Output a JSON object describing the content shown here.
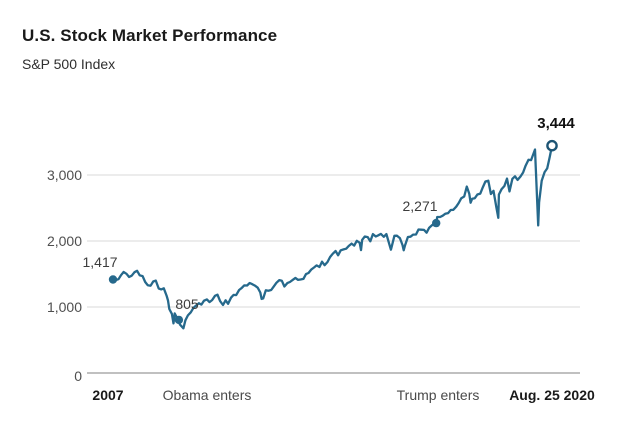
{
  "header": {
    "title": "U.S. Stock Market Performance",
    "subtitle": "S&P 500 Index"
  },
  "colors": {
    "line": "#26698c",
    "marker_fill": "#26698c",
    "open_marker_stroke": "#1d5474",
    "open_marker_fill": "#ffffff",
    "gridline": "#d9d9d9",
    "axis": "#ababab"
  },
  "chart_data": {
    "type": "line",
    "title": "U.S. Stock Market Performance",
    "subtitle": "S&P 500 Index",
    "x_range": [
      2007.0,
      2020.65
    ],
    "ylim": [
      0,
      3600
    ],
    "grid": "horizontal",
    "legend": "none",
    "yticks": [
      {
        "value": 0,
        "label": "0"
      },
      {
        "value": 1000,
        "label": "1,000"
      },
      {
        "value": 2000,
        "label": "2,000"
      },
      {
        "value": 3000,
        "label": "3,000"
      }
    ],
    "xticks": [
      {
        "t": 2007.0,
        "label": "2007",
        "bold": true
      },
      {
        "t": 2009.05,
        "label": "Obama enters",
        "bold": false
      },
      {
        "t": 2017.05,
        "label": "Trump enters",
        "bold": false
      },
      {
        "t": 2020.65,
        "label": "Aug. 25 2020",
        "bold": true
      }
    ],
    "markers": [
      {
        "t": 2007.0,
        "value": 1417,
        "label": "1,417",
        "style": "filled"
      },
      {
        "t": 2009.05,
        "value": 805,
        "label": "805",
        "style": "filled"
      },
      {
        "t": 2017.05,
        "value": 2271,
        "label": "2,271",
        "style": "filled"
      },
      {
        "t": 2020.65,
        "value": 3444,
        "label": "3,444",
        "style": "open"
      }
    ],
    "series": {
      "name": "S&P 500 Index",
      "points": [
        [
          2007.0,
          1417
        ],
        [
          2007.08,
          1407
        ],
        [
          2007.17,
          1421
        ],
        [
          2007.25,
          1482
        ],
        [
          2007.33,
          1531
        ],
        [
          2007.42,
          1503
        ],
        [
          2007.5,
          1455
        ],
        [
          2007.58,
          1474
        ],
        [
          2007.67,
          1527
        ],
        [
          2007.75,
          1549
        ],
        [
          2007.83,
          1481
        ],
        [
          2007.92,
          1468
        ],
        [
          2008.0,
          1379
        ],
        [
          2008.08,
          1331
        ],
        [
          2008.17,
          1323
        ],
        [
          2008.25,
          1386
        ],
        [
          2008.33,
          1400
        ],
        [
          2008.42,
          1280
        ],
        [
          2008.5,
          1267
        ],
        [
          2008.58,
          1283
        ],
        [
          2008.67,
          1166
        ],
        [
          2008.71,
          1099
        ],
        [
          2008.75,
          969
        ],
        [
          2008.83,
          896
        ],
        [
          2008.88,
          752
        ],
        [
          2008.92,
          903
        ],
        [
          2009.0,
          826
        ],
        [
          2009.05,
          805
        ],
        [
          2009.08,
          735
        ],
        [
          2009.19,
          677
        ],
        [
          2009.25,
          798
        ],
        [
          2009.33,
          873
        ],
        [
          2009.42,
          919
        ],
        [
          2009.5,
          987
        ],
        [
          2009.58,
          1021
        ],
        [
          2009.67,
          1057
        ],
        [
          2009.75,
          1036
        ],
        [
          2009.83,
          1096
        ],
        [
          2009.92,
          1115
        ],
        [
          2010.0,
          1074
        ],
        [
          2010.08,
          1104
        ],
        [
          2010.17,
          1169
        ],
        [
          2010.25,
          1187
        ],
        [
          2010.33,
          1089
        ],
        [
          2010.42,
          1031
        ],
        [
          2010.5,
          1102
        ],
        [
          2010.58,
          1049
        ],
        [
          2010.67,
          1141
        ],
        [
          2010.75,
          1183
        ],
        [
          2010.83,
          1181
        ],
        [
          2010.92,
          1258
        ],
        [
          2011.0,
          1286
        ],
        [
          2011.08,
          1327
        ],
        [
          2011.17,
          1326
        ],
        [
          2011.25,
          1364
        ],
        [
          2011.33,
          1345
        ],
        [
          2011.42,
          1321
        ],
        [
          2011.5,
          1292
        ],
        [
          2011.58,
          1219
        ],
        [
          2011.62,
          1123
        ],
        [
          2011.67,
          1131
        ],
        [
          2011.75,
          1253
        ],
        [
          2011.83,
          1247
        ],
        [
          2011.92,
          1258
        ],
        [
          2012.0,
          1312
        ],
        [
          2012.08,
          1366
        ],
        [
          2012.17,
          1408
        ],
        [
          2012.25,
          1398
        ],
        [
          2012.33,
          1310
        ],
        [
          2012.42,
          1362
        ],
        [
          2012.5,
          1379
        ],
        [
          2012.58,
          1407
        ],
        [
          2012.67,
          1441
        ],
        [
          2012.75,
          1412
        ],
        [
          2012.83,
          1416
        ],
        [
          2012.92,
          1426
        ],
        [
          2013.0,
          1498
        ],
        [
          2013.08,
          1515
        ],
        [
          2013.17,
          1569
        ],
        [
          2013.25,
          1598
        ],
        [
          2013.33,
          1631
        ],
        [
          2013.42,
          1606
        ],
        [
          2013.5,
          1686
        ],
        [
          2013.58,
          1633
        ],
        [
          2013.67,
          1682
        ],
        [
          2013.75,
          1757
        ],
        [
          2013.83,
          1806
        ],
        [
          2013.92,
          1848
        ],
        [
          2014.0,
          1783
        ],
        [
          2014.08,
          1859
        ],
        [
          2014.17,
          1872
        ],
        [
          2014.25,
          1884
        ],
        [
          2014.33,
          1924
        ],
        [
          2014.42,
          1960
        ],
        [
          2014.5,
          1931
        ],
        [
          2014.58,
          2003
        ],
        [
          2014.67,
          1972
        ],
        [
          2014.71,
          1862
        ],
        [
          2014.75,
          2018
        ],
        [
          2014.83,
          2068
        ],
        [
          2014.92,
          2059
        ],
        [
          2015.0,
          1995
        ],
        [
          2015.08,
          2105
        ],
        [
          2015.17,
          2068
        ],
        [
          2015.25,
          2086
        ],
        [
          2015.33,
          2107
        ],
        [
          2015.42,
          2063
        ],
        [
          2015.5,
          2104
        ],
        [
          2015.58,
          1972
        ],
        [
          2015.64,
          1868
        ],
        [
          2015.67,
          1920
        ],
        [
          2015.75,
          2079
        ],
        [
          2015.83,
          2080
        ],
        [
          2015.92,
          2044
        ],
        [
          2016.0,
          1940
        ],
        [
          2016.04,
          1859
        ],
        [
          2016.08,
          1932
        ],
        [
          2016.17,
          2060
        ],
        [
          2016.25,
          2065
        ],
        [
          2016.33,
          2097
        ],
        [
          2016.42,
          2099
        ],
        [
          2016.5,
          2174
        ],
        [
          2016.58,
          2171
        ],
        [
          2016.67,
          2168
        ],
        [
          2016.75,
          2126
        ],
        [
          2016.83,
          2199
        ],
        [
          2016.92,
          2239
        ],
        [
          2017.05,
          2271
        ],
        [
          2017.08,
          2364
        ],
        [
          2017.17,
          2363
        ],
        [
          2017.25,
          2384
        ],
        [
          2017.33,
          2412
        ],
        [
          2017.42,
          2423
        ],
        [
          2017.5,
          2470
        ],
        [
          2017.58,
          2472
        ],
        [
          2017.67,
          2519
        ],
        [
          2017.75,
          2575
        ],
        [
          2017.83,
          2648
        ],
        [
          2017.92,
          2674
        ],
        [
          2018.0,
          2824
        ],
        [
          2018.08,
          2714
        ],
        [
          2018.12,
          2581
        ],
        [
          2018.17,
          2641
        ],
        [
          2018.25,
          2648
        ],
        [
          2018.33,
          2705
        ],
        [
          2018.42,
          2718
        ],
        [
          2018.5,
          2816
        ],
        [
          2018.58,
          2902
        ],
        [
          2018.67,
          2914
        ],
        [
          2018.75,
          2712
        ],
        [
          2018.83,
          2760
        ],
        [
          2018.92,
          2507
        ],
        [
          2018.98,
          2351
        ],
        [
          2019.0,
          2704
        ],
        [
          2019.08,
          2784
        ],
        [
          2019.17,
          2834
        ],
        [
          2019.25,
          2946
        ],
        [
          2019.33,
          2752
        ],
        [
          2019.42,
          2942
        ],
        [
          2019.5,
          2980
        ],
        [
          2019.58,
          2926
        ],
        [
          2019.67,
          2977
        ],
        [
          2019.75,
          3038
        ],
        [
          2019.83,
          3141
        ],
        [
          2019.92,
          3231
        ],
        [
          2020.0,
          3226
        ],
        [
          2020.12,
          3386
        ],
        [
          2020.16,
          2954
        ],
        [
          2020.22,
          2237
        ],
        [
          2020.25,
          2585
        ],
        [
          2020.33,
          2912
        ],
        [
          2020.42,
          3044
        ],
        [
          2020.5,
          3100
        ],
        [
          2020.58,
          3271
        ],
        [
          2020.65,
          3444
        ]
      ]
    }
  }
}
